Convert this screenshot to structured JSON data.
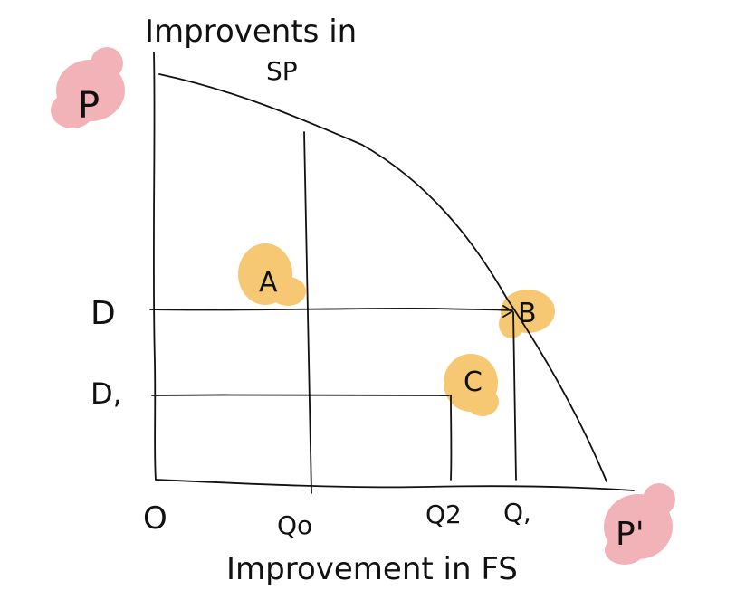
{
  "axes": {
    "y_title_line1": "Improvents in",
    "y_title_line2": "SP",
    "x_title": "Improvement in FS"
  },
  "points": {
    "P": "P",
    "P_prime": "P'",
    "A": "A",
    "B": "B",
    "C": "C",
    "origin": "O"
  },
  "y_ticks": {
    "D": "D",
    "D1": "D,"
  },
  "x_ticks": {
    "Q0": "Qo",
    "Q2": "Q2",
    "Q1": "Q,"
  },
  "colors": {
    "pink_highlight": "#f2b3b8",
    "orange_highlight": "#f7c873",
    "ink": "#111111"
  }
}
